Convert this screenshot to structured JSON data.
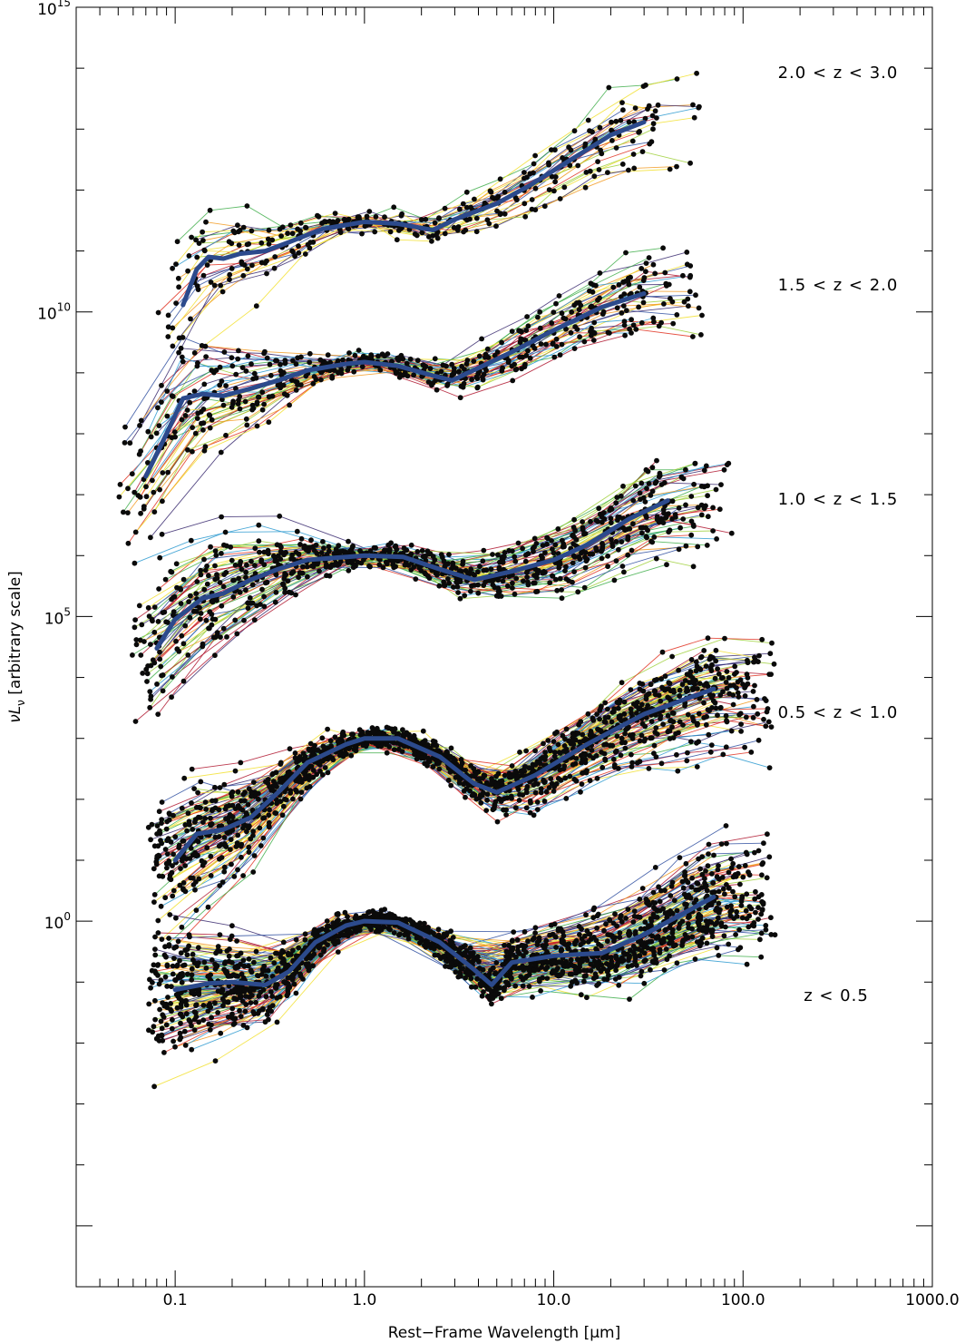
{
  "chart_data": {
    "type": "line",
    "xlabel": "Rest−Frame Wavelength [μm]",
    "ylabel": "νL",
    "ylabel_sub": "ν",
    "ylabel_suffix": " [arbitrary scale]",
    "x_scale": "log",
    "y_scale": "log",
    "xlim": [
      0.03,
      1000
    ],
    "ylim": [
      1e-06,
      1000000000000000.0
    ],
    "x_tick_labels": [
      "0.1",
      "1.0",
      "10.0",
      "100.0",
      "1000.0"
    ],
    "x_tick_values": [
      0.1,
      1.0,
      10.0,
      100.0,
      1000.0
    ],
    "y_tick_labels": [
      {
        "base": "10",
        "exp": "0",
        "value": 1
      },
      {
        "base": "10",
        "exp": "5",
        "value": 100000
      },
      {
        "base": "10",
        "exp": "10",
        "value": 10000000000
      },
      {
        "base": "10",
        "exp": "15",
        "value": 1000000000000000
      }
    ],
    "grid": false,
    "colors": {
      "median": "#2c4a8c",
      "points": "#0a0a0a",
      "sed_palette": [
        "#3a2a70",
        "#2f4fa0",
        "#2d9ad0",
        "#3fae4a",
        "#9fd03a",
        "#f2e030",
        "#f29a20",
        "#e03020",
        "#b01830"
      ]
    },
    "bins": [
      {
        "label": "2.0 < z < 3.0",
        "norm": 300000000000.0,
        "median": [
          [
            0.11,
            13000000000.0
          ],
          [
            0.13,
            50000000000.0
          ],
          [
            0.15,
            80000000000.0
          ],
          [
            0.18,
            75000000000.0
          ],
          [
            0.22,
            90000000000.0
          ],
          [
            0.3,
            100000000000.0
          ],
          [
            0.4,
            140000000000.0
          ],
          [
            0.6,
            230000000000.0
          ],
          [
            1.0,
            300000000000.0
          ],
          [
            1.5,
            280000000000.0
          ],
          [
            2.3,
            220000000000.0
          ],
          [
            3.0,
            330000000000.0
          ],
          [
            5.0,
            600000000000.0
          ],
          [
            7.5,
            1200000000000.0
          ],
          [
            12.0,
            3000000000000.0
          ],
          [
            20.0,
            8000000000000.0
          ],
          [
            30.0,
            13000000000000.0
          ]
        ]
      },
      {
        "label": "1.5 < z < 2.0",
        "norm": 1500000000.0,
        "median": [
          [
            0.07,
            20000000.0
          ],
          [
            0.09,
            100000000.0
          ],
          [
            0.11,
            380000000.0
          ],
          [
            0.14,
            450000000.0
          ],
          [
            0.18,
            420000000.0
          ],
          [
            0.25,
            550000000.0
          ],
          [
            0.35,
            750000000.0
          ],
          [
            0.5,
            1100000000.0
          ],
          [
            0.8,
            1400000000.0
          ],
          [
            1.0,
            1500000000.0
          ],
          [
            1.5,
            1300000000.0
          ],
          [
            2.3,
            900000000.0
          ],
          [
            2.9,
            750000000.0
          ],
          [
            4.0,
            1200000000.0
          ],
          [
            6.0,
            2200000000.0
          ],
          [
            10.0,
            5000000000.0
          ],
          [
            18.0,
            12000000000.0
          ],
          [
            30.0,
            20000000000.0
          ]
        ]
      },
      {
        "label": "1.0 < z < 1.5",
        "norm": 1000000.0,
        "median": [
          [
            0.08,
            30000.0
          ],
          [
            0.1,
            90000.0
          ],
          [
            0.14,
            200000.0
          ],
          [
            0.18,
            240000.0
          ],
          [
            0.25,
            400000.0
          ],
          [
            0.35,
            600000.0
          ],
          [
            0.5,
            850000.0
          ],
          [
            1.0,
            1000000.0
          ],
          [
            1.6,
            950000.0
          ],
          [
            2.5,
            600000.0
          ],
          [
            3.8,
            400000.0
          ],
          [
            6.0,
            550000.0
          ],
          [
            10.0,
            850000.0
          ],
          [
            15.0,
            1500000.0
          ],
          [
            25.0,
            4000000.0
          ],
          [
            40.0,
            8000000.0
          ]
        ]
      },
      {
        "label": "0.5 < z < 1.0",
        "norm": 1000.0,
        "median": [
          [
            0.1,
            10.0
          ],
          [
            0.13,
            27.0
          ],
          [
            0.18,
            32.0
          ],
          [
            0.25,
            50.0
          ],
          [
            0.35,
            130.0
          ],
          [
            0.5,
            400.0
          ],
          [
            0.8,
            800.0
          ],
          [
            1.0,
            1000.0
          ],
          [
            1.5,
            1000.0
          ],
          [
            2.5,
            500.0
          ],
          [
            3.8,
            180.0
          ],
          [
            5.0,
            130.0
          ],
          [
            8.0,
            250.0
          ],
          [
            15.0,
            800.0
          ],
          [
            30.0,
            2500.0
          ],
          [
            70.0,
            6500.0
          ]
        ]
      },
      {
        "label": "z < 0.5",
        "norm": 1.0,
        "median": [
          [
            0.1,
            0.075
          ],
          [
            0.15,
            0.095
          ],
          [
            0.2,
            0.1
          ],
          [
            0.3,
            0.09
          ],
          [
            0.4,
            0.15
          ],
          [
            0.55,
            0.45
          ],
          [
            0.8,
            0.85
          ],
          [
            1.0,
            1.0
          ],
          [
            1.5,
            0.95
          ],
          [
            2.5,
            0.45
          ],
          [
            3.8,
            0.16
          ],
          [
            4.7,
            0.09
          ],
          [
            6.0,
            0.21
          ],
          [
            10.0,
            0.27
          ],
          [
            18.0,
            0.3
          ],
          [
            30.0,
            0.6
          ],
          [
            70.0,
            2.5
          ]
        ]
      }
    ]
  }
}
